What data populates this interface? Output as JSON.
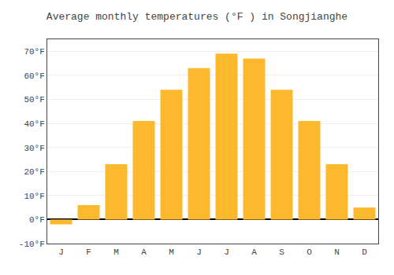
{
  "chart_data": {
    "type": "bar",
    "title": "Average monthly temperatures (°F ) in Songjianghe",
    "categories": [
      "J",
      "F",
      "M",
      "A",
      "M",
      "J",
      "J",
      "A",
      "S",
      "O",
      "N",
      "D"
    ],
    "values": [
      -2,
      6,
      23,
      41,
      54,
      63,
      69,
      67,
      54,
      41,
      23,
      5
    ],
    "color": "#FDB92E",
    "ylim": [
      -10,
      75
    ],
    "yticks": [
      {
        "value": -10,
        "label": "-10°F"
      },
      {
        "value": 0,
        "label": "0°F"
      },
      {
        "value": 10,
        "label": "10°F"
      },
      {
        "value": 20,
        "label": "20°F"
      },
      {
        "value": 30,
        "label": "30°F"
      },
      {
        "value": 40,
        "label": "40°F"
      },
      {
        "value": 50,
        "label": "50°F"
      },
      {
        "value": 60,
        "label": "60°F"
      },
      {
        "value": 70,
        "label": "70°F"
      }
    ],
    "grid": true
  }
}
